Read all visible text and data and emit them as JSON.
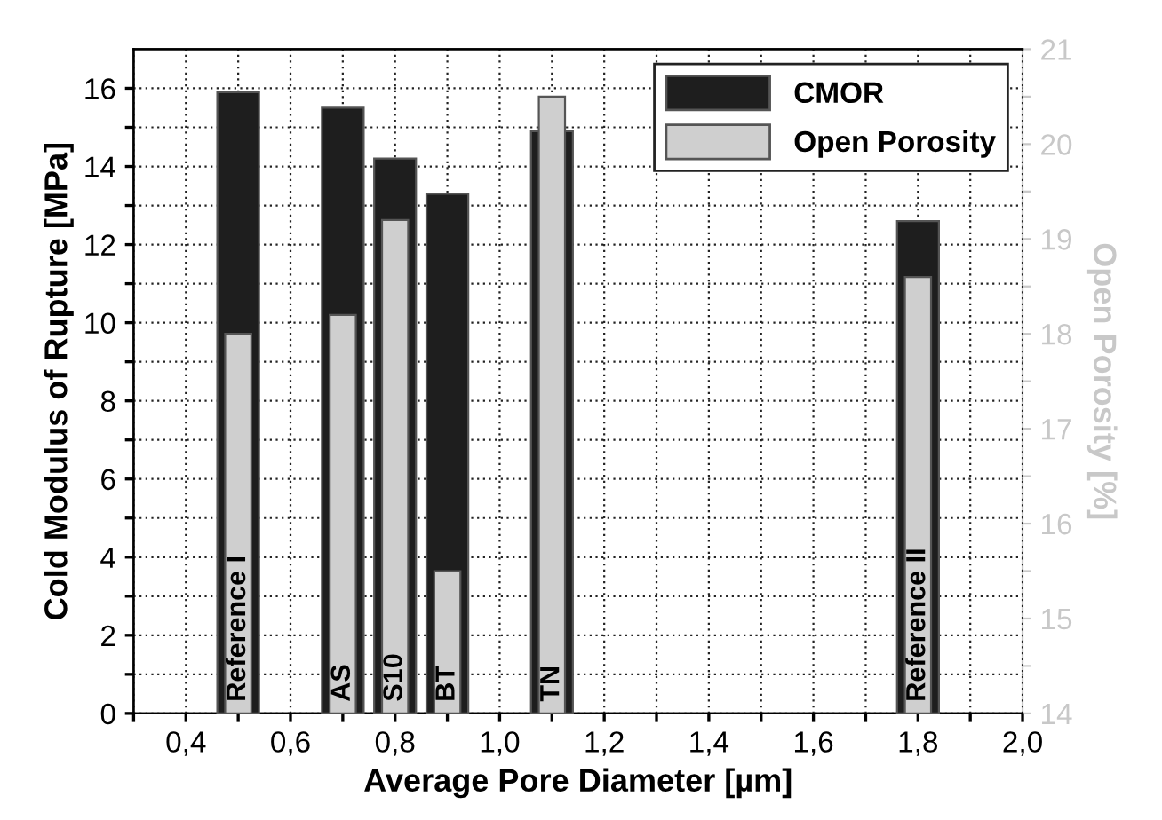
{
  "chart_data": {
    "type": "bar",
    "xlabel": "Average Pore Diameter [µm]",
    "ylabel": "Cold Modulus of Rupture [MPa]",
    "y2label": "Open Porosity [%]",
    "x": [
      0.5,
      0.7,
      0.8,
      0.9,
      1.1,
      1.8
    ],
    "series": [
      {
        "name": "CMOR",
        "color": "#1e1e1e",
        "values": [
          15.9,
          15.5,
          14.2,
          13.3,
          14.9,
          12.6
        ]
      },
      {
        "name": "Open Porosity",
        "color": "#cfcfcf",
        "axis": "y2",
        "values": [
          18.0,
          18.2,
          19.2,
          15.5,
          20.5,
          18.6
        ]
      }
    ],
    "xlim": [
      0.3,
      2.0
    ],
    "xticks": [
      {
        "value": 0.3,
        "label": null
      },
      {
        "value": 0.4,
        "label": "0,4"
      },
      {
        "value": 0.5,
        "label": null
      },
      {
        "value": 0.6,
        "label": "0,6"
      },
      {
        "value": 0.7,
        "label": null
      },
      {
        "value": 0.8,
        "label": "0,8"
      },
      {
        "value": 0.9,
        "label": null
      },
      {
        "value": 1.0,
        "label": "1,0"
      },
      {
        "value": 1.1,
        "label": null
      },
      {
        "value": 1.2,
        "label": "1,2"
      },
      {
        "value": 1.3,
        "label": null
      },
      {
        "value": 1.4,
        "label": "1,4"
      },
      {
        "value": 1.5,
        "label": null
      },
      {
        "value": 1.6,
        "label": "1,6"
      },
      {
        "value": 1.7,
        "label": null
      },
      {
        "value": 1.8,
        "label": "1,8"
      },
      {
        "value": 1.9,
        "label": null
      },
      {
        "value": 2.0,
        "label": "2,0"
      }
    ],
    "ylim": [
      0,
      17
    ],
    "yticks": [
      0,
      {
        "value": 1,
        "label": null
      },
      2,
      {
        "value": 3,
        "label": null
      },
      4,
      {
        "value": 5,
        "label": null
      },
      6,
      {
        "value": 7,
        "label": null
      },
      8,
      {
        "value": 9,
        "label": null
      },
      10,
      {
        "value": 11,
        "label": null
      },
      12,
      {
        "value": 13,
        "label": null
      },
      14,
      {
        "value": 15,
        "label": null
      },
      16
    ],
    "y2lim": [
      14,
      21
    ],
    "y2ticks": [
      14,
      {
        "value": 14.5,
        "label": null
      },
      15,
      {
        "value": 15.5,
        "label": null
      },
      16,
      {
        "value": 16.5,
        "label": null
      },
      17,
      {
        "value": 17.5,
        "label": null
      },
      18,
      {
        "value": 18.5,
        "label": null
      },
      19,
      {
        "value": 19.5,
        "label": null
      },
      20,
      {
        "value": 20.5,
        "label": null
      },
      21
    ],
    "annotations": [
      {
        "text": "Reference I",
        "x": 0.5,
        "y": 0
      },
      {
        "text": "AS",
        "x": 0.7,
        "y": 0
      },
      {
        "text": "S10",
        "x": 0.8,
        "y": 0
      },
      {
        "text": "BT",
        "x": 0.9,
        "y": 0
      },
      {
        "text": "TN",
        "x": 1.1,
        "y": 0
      },
      {
        "text": "Reference II",
        "x": 1.8,
        "y": 0
      }
    ],
    "grid": true,
    "legend": "top right"
  }
}
